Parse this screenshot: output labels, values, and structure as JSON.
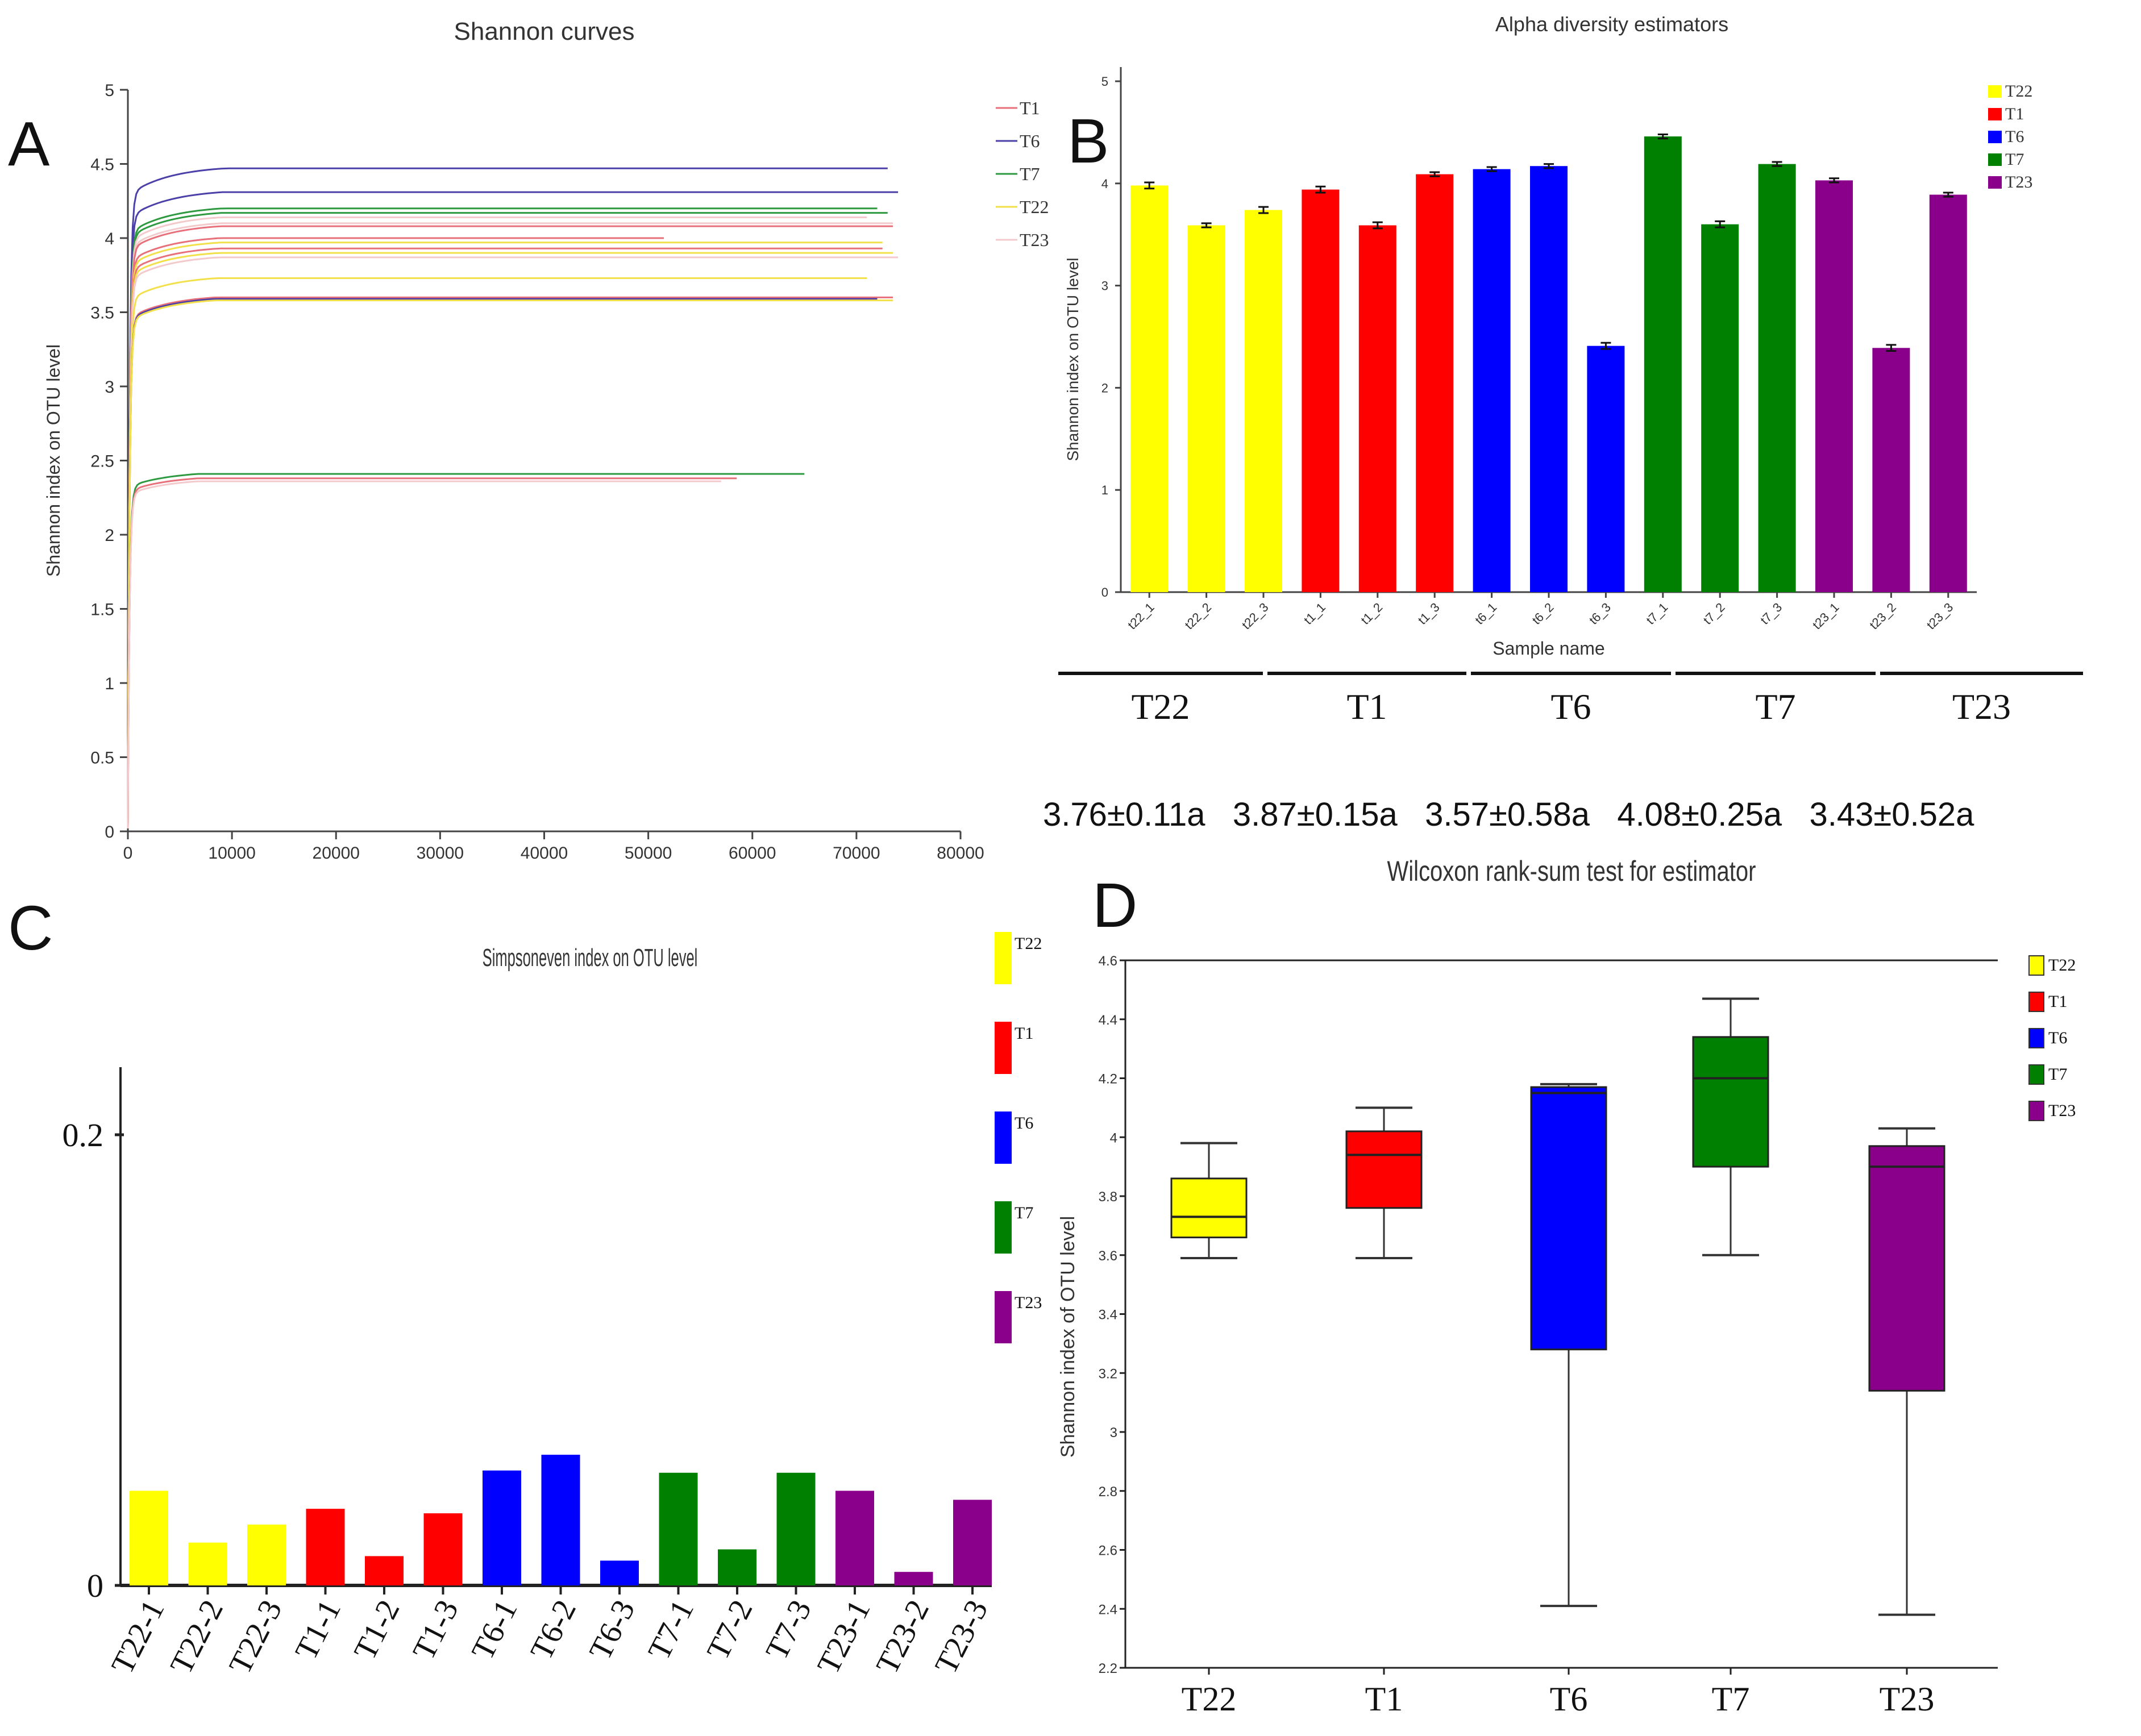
{
  "panels": {
    "A": {
      "letter": "A"
    },
    "B": {
      "letter": "B"
    },
    "C": {
      "letter": "C"
    },
    "D": {
      "letter": "D"
    }
  },
  "group_colors": {
    "T22": "#ffff00",
    "T1": "#ff0000",
    "T6": "#0000ff",
    "T7": "#008000",
    "T23": "#8b008b"
  },
  "curve_colors": {
    "T1": "#e8707a",
    "T6": "#4b3fa8",
    "T7": "#2e9a40",
    "T22": "#f2e04a",
    "T23": "#f3c9cc"
  },
  "chart_data": [
    {
      "id": "A",
      "type": "line",
      "title": "Shannon curves",
      "xlabel": "",
      "ylabel": "Shannon index on OTU level",
      "xlim": [
        0,
        80000
      ],
      "ylim": [
        0,
        5
      ],
      "xticks": [
        0,
        10000,
        20000,
        30000,
        40000,
        50000,
        60000,
        70000,
        80000
      ],
      "xtick_labels": [
        "0",
        "10000",
        "20000",
        "30000",
        "40000",
        "50000",
        "60000",
        "70000",
        "80000"
      ],
      "yticks": [
        0,
        0.5,
        1,
        1.5,
        2,
        2.5,
        3,
        3.5,
        4,
        4.5,
        5
      ],
      "ytick_labels": [
        "0",
        "0.5",
        "1",
        "1.5",
        "2",
        "2.5",
        "3",
        "3.5",
        "4",
        "4.5",
        "5"
      ],
      "legend": [
        "T1",
        "T6",
        "T7",
        "T22",
        "T23"
      ],
      "legend_position": "top-right",
      "series": [
        {
          "group": "T6",
          "plateau": 4.47,
          "max_x": 73000
        },
        {
          "group": "T6",
          "plateau": 4.31,
          "max_x": 74000
        },
        {
          "group": "T7",
          "plateau": 4.2,
          "max_x": 72000
        },
        {
          "group": "T7",
          "plateau": 4.17,
          "max_x": 73000
        },
        {
          "group": "T23",
          "plateau": 4.14,
          "max_x": 71000
        },
        {
          "group": "T23",
          "plateau": 4.1,
          "max_x": 73500
        },
        {
          "group": "T1",
          "plateau": 4.08,
          "max_x": 73500
        },
        {
          "group": "T1",
          "plateau": 4.0,
          "max_x": 51500
        },
        {
          "group": "T22",
          "plateau": 3.97,
          "max_x": 72500
        },
        {
          "group": "T1",
          "plateau": 3.93,
          "max_x": 72500
        },
        {
          "group": "T22",
          "plateau": 3.9,
          "max_x": 73500
        },
        {
          "group": "T23",
          "plateau": 3.87,
          "max_x": 74000
        },
        {
          "group": "T22",
          "plateau": 3.73,
          "max_x": 71000
        },
        {
          "group": "T1",
          "plateau": 3.6,
          "max_x": 73500
        },
        {
          "group": "T6",
          "plateau": 3.59,
          "max_x": 72000
        },
        {
          "group": "T22",
          "plateau": 3.58,
          "max_x": 73500
        },
        {
          "group": "T7",
          "plateau": 2.41,
          "max_x": 65000
        },
        {
          "group": "T1",
          "plateau": 2.38,
          "max_x": 58500
        },
        {
          "group": "T23",
          "plateau": 2.36,
          "max_x": 57000
        }
      ]
    },
    {
      "id": "B",
      "type": "bar",
      "title": "Alpha diversity estimators",
      "xlabel": "Sample name",
      "ylabel": "Shannon index on OTU level",
      "ylim": [
        0,
        5
      ],
      "yticks": [
        0,
        1,
        2,
        3,
        4,
        5
      ],
      "ytick_labels": [
        "0",
        "1",
        "2",
        "3",
        "4",
        "5"
      ],
      "categories": [
        "t22_1",
        "t22_2",
        "t22_3",
        "t1_1",
        "t1_2",
        "t1_3",
        "t6_1",
        "t6_2",
        "t6_3",
        "t7_1",
        "t7_2",
        "t7_3",
        "t23_1",
        "t23_2",
        "t23_3"
      ],
      "groups": [
        "T22",
        "T22",
        "T22",
        "T1",
        "T1",
        "T1",
        "T6",
        "T6",
        "T6",
        "T7",
        "T7",
        "T7",
        "T23",
        "T23",
        "T23"
      ],
      "values": [
        3.98,
        3.59,
        3.74,
        3.94,
        3.59,
        4.09,
        4.14,
        4.17,
        2.41,
        4.46,
        3.6,
        4.19,
        4.03,
        2.39,
        3.89
      ],
      "errors": [
        0.03,
        0.02,
        0.03,
        0.03,
        0.03,
        0.02,
        0.02,
        0.02,
        0.03,
        0.02,
        0.03,
        0.02,
        0.02,
        0.03,
        0.02
      ],
      "legend": [
        "T22",
        "T1",
        "T6",
        "T7",
        "T23"
      ],
      "legend_position": "top-right",
      "group_labels": [
        "T22",
        "T1",
        "T6",
        "T7",
        "T23"
      ],
      "stats": [
        "3.76±0.11a",
        "3.87±0.15a",
        "3.57±0.58a",
        "4.08±0.25a",
        "3.43±0.52a"
      ]
    },
    {
      "id": "C",
      "type": "bar",
      "title": "Simpsoneven index on OTU level",
      "xlabel": "",
      "ylabel": "",
      "ylim": [
        0,
        0.23
      ],
      "yticks": [
        0,
        0.2
      ],
      "ytick_labels": [
        "0",
        "0.2"
      ],
      "categories": [
        "T22-1",
        "T22-2",
        "T22-3",
        "T1-1",
        "T1-2",
        "T1-3",
        "T6-1",
        "T6-2",
        "T6-3",
        "T7-1",
        "T7-2",
        "T7-3",
        "T23-1",
        "T23-2",
        "T23-3"
      ],
      "groups": [
        "T22",
        "T22",
        "T22",
        "T1",
        "T1",
        "T1",
        "T6",
        "T6",
        "T6",
        "T7",
        "T7",
        "T7",
        "T23",
        "T23",
        "T23"
      ],
      "values": [
        0.042,
        0.019,
        0.027,
        0.034,
        0.013,
        0.032,
        0.051,
        0.058,
        0.011,
        0.05,
        0.016,
        0.05,
        0.042,
        0.006,
        0.038
      ],
      "legend": [
        "T22",
        "T1",
        "T6",
        "T7",
        "T23"
      ],
      "legend_position": "right"
    },
    {
      "id": "D",
      "type": "box",
      "title": "Wilcoxon rank-sum test for estimator",
      "xlabel": "",
      "ylabel": "Shannon index of OTU level",
      "ylim": [
        2.2,
        4.6
      ],
      "yticks": [
        2.2,
        2.4,
        2.6,
        2.8,
        3,
        3.2,
        3.4,
        3.6,
        3.8,
        4,
        4.2,
        4.4,
        4.6
      ],
      "ytick_labels": [
        "2.2",
        "2.4",
        "2.6",
        "2.8",
        "3",
        "3.2",
        "3.4",
        "3.6",
        "3.8",
        "4",
        "4.2",
        "4.4",
        "4.6"
      ],
      "categories": [
        "T22",
        "T1",
        "T6",
        "T7",
        "T23"
      ],
      "boxes": [
        {
          "group": "T22",
          "min": 3.59,
          "q1": 3.66,
          "median": 3.73,
          "q3": 3.86,
          "max": 3.98
        },
        {
          "group": "T1",
          "min": 3.59,
          "q1": 3.76,
          "median": 3.94,
          "q3": 4.02,
          "max": 4.1
        },
        {
          "group": "T6",
          "min": 2.41,
          "q1": 3.28,
          "median": 4.15,
          "q3": 4.17,
          "max": 4.18
        },
        {
          "group": "T7",
          "min": 3.6,
          "q1": 3.9,
          "median": 4.2,
          "q3": 4.34,
          "max": 4.47
        },
        {
          "group": "T23",
          "min": 2.38,
          "q1": 3.14,
          "median": 3.9,
          "q3": 3.97,
          "max": 4.03
        }
      ],
      "legend": [
        "T22",
        "T1",
        "T6",
        "T7",
        "T23"
      ],
      "legend_position": "top-right"
    }
  ]
}
